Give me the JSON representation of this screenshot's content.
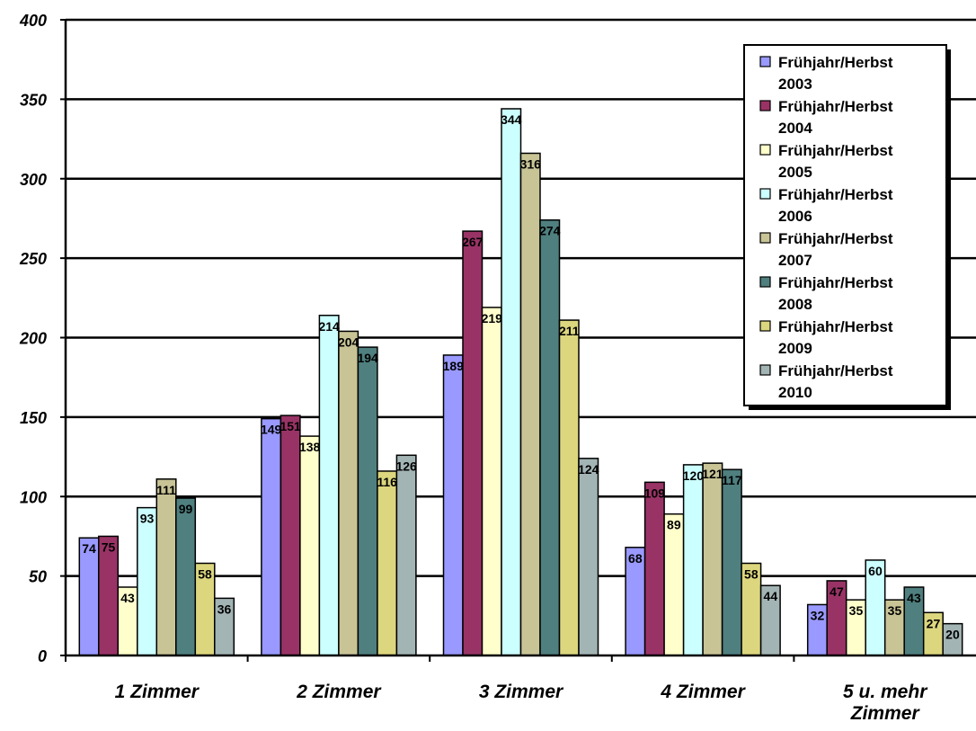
{
  "chart_data": {
    "type": "bar",
    "categories": [
      [
        "1 Zimmer"
      ],
      [
        "2 Zimmer"
      ],
      [
        "3 Zimmer"
      ],
      [
        "4 Zimmer"
      ],
      [
        "5 u. mehr",
        "Zimmer"
      ]
    ],
    "series": [
      {
        "name": "Frühjahr/Herbst 2003",
        "label_lines": [
          "Frühjahr/Herbst",
          "2003"
        ],
        "color": "#9999ff",
        "values": [
          74,
          149,
          189,
          68,
          32
        ]
      },
      {
        "name": "Frühjahr/Herbst 2004",
        "label_lines": [
          "Frühjahr/Herbst",
          "2004"
        ],
        "color": "#993366",
        "values": [
          75,
          151,
          267,
          109,
          47
        ]
      },
      {
        "name": "Frühjahr/Herbst 2005",
        "label_lines": [
          "Frühjahr/Herbst",
          "2005"
        ],
        "color": "#ffffcc",
        "values": [
          43,
          138,
          219,
          89,
          35
        ]
      },
      {
        "name": "Frühjahr/Herbst 2006",
        "label_lines": [
          "Frühjahr/Herbst",
          "2006"
        ],
        "color": "#ccffff",
        "values": [
          93,
          214,
          344,
          120,
          60
        ]
      },
      {
        "name": "Frühjahr/Herbst 2007",
        "label_lines": [
          "Frühjahr/Herbst",
          "2007"
        ],
        "color": "#c8c496",
        "values": [
          111,
          204,
          316,
          121,
          35
        ]
      },
      {
        "name": "Frühjahr/Herbst 2008",
        "label_lines": [
          "Frühjahr/Herbst",
          "2008"
        ],
        "color": "#4f7f7f",
        "values": [
          99,
          194,
          274,
          117,
          43
        ]
      },
      {
        "name": "Frühjahr/Herbst 2009",
        "label_lines": [
          "Frühjahr/Herbst",
          "2009"
        ],
        "color": "#dcd67e",
        "values": [
          58,
          116,
          211,
          58,
          27
        ]
      },
      {
        "name": "Frühjahr/Herbst 2010",
        "label_lines": [
          "Frühjahr/Herbst",
          "2010"
        ],
        "color": "#a3b4b4",
        "values": [
          36,
          126,
          124,
          44,
          20
        ]
      }
    ],
    "ylim": [
      0,
      400
    ],
    "yticks": [
      "0",
      "50",
      "100",
      "150",
      "200",
      "250",
      "300",
      "350",
      "400"
    ],
    "grid": true,
    "legend_position": "top-right",
    "title": "",
    "xlabel": "",
    "ylabel": ""
  }
}
